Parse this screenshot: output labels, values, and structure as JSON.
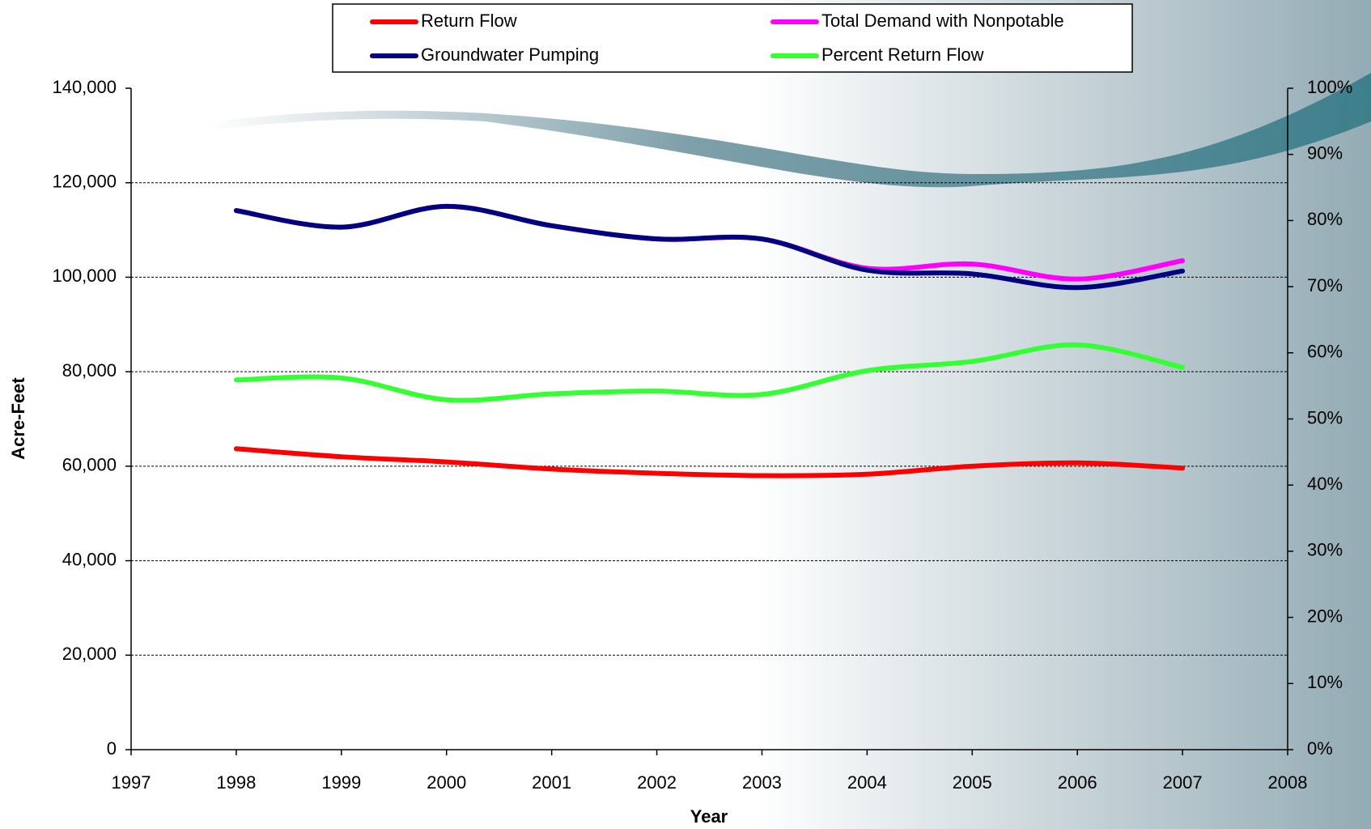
{
  "chart_data": {
    "type": "line",
    "x_label": "Year",
    "y_label": "Acre-Feet",
    "x": [
      1998,
      1999,
      2000,
      2001,
      2002,
      2003,
      2004,
      2005,
      2006,
      2007
    ],
    "series": [
      {
        "name": "Return Flow",
        "color": "#ff0000",
        "values": [
          63700,
          62000,
          60900,
          59400,
          58500,
          58000,
          58300,
          60000,
          60700,
          59600
        ]
      },
      {
        "name": "Total Demand with Nonpotable",
        "color": "#ff00ff",
        "values": [
          114100,
          110600,
          115000,
          110900,
          108100,
          108100,
          101900,
          102800,
          99600,
          103500
        ]
      },
      {
        "name": "Groundwater Pumping",
        "color": "#000080",
        "values": [
          114100,
          110600,
          115000,
          110900,
          108100,
          108100,
          101500,
          100700,
          97800,
          101300
        ]
      },
      {
        "name": "Percent Return Flow",
        "color": "#33ff33",
        "axis": "y2",
        "values": [
          55.9,
          56.2,
          52.9,
          53.8,
          54.2,
          53.7,
          57.3,
          58.7,
          61.2,
          57.8
        ]
      }
    ],
    "xlim": [
      1997,
      2008
    ],
    "xticks": [
      1997,
      1998,
      1999,
      2000,
      2001,
      2002,
      2003,
      2004,
      2005,
      2006,
      2007,
      2008
    ],
    "ylim": [
      0,
      140000
    ],
    "yticks": [
      0,
      {
        "value": 20000,
        "label": "20,000"
      },
      {
        "value": 40000,
        "label": "40,000"
      },
      {
        "value": 60000,
        "label": "60,000"
      },
      {
        "value": 80000,
        "label": "80,000"
      },
      {
        "value": 100000,
        "label": "100,000"
      },
      {
        "value": 120000,
        "label": "120,000"
      },
      {
        "value": 140000,
        "label": "140,000"
      }
    ],
    "y2lim": [
      0,
      100
    ],
    "y2ticks": [
      {
        "value": 0,
        "label": "0%"
      },
      {
        "value": 10,
        "label": "10%"
      },
      {
        "value": 20,
        "label": "20%"
      },
      {
        "value": 30,
        "label": "30%"
      },
      {
        "value": 40,
        "label": "40%"
      },
      {
        "value": 50,
        "label": "50%"
      },
      {
        "value": 60,
        "label": "60%"
      },
      {
        "value": 70,
        "label": "70%"
      },
      {
        "value": 80,
        "label": "80%"
      },
      {
        "value": 90,
        "label": "90%"
      },
      {
        "value": 100,
        "label": "100%"
      }
    ],
    "grid": true,
    "legend": "top"
  }
}
